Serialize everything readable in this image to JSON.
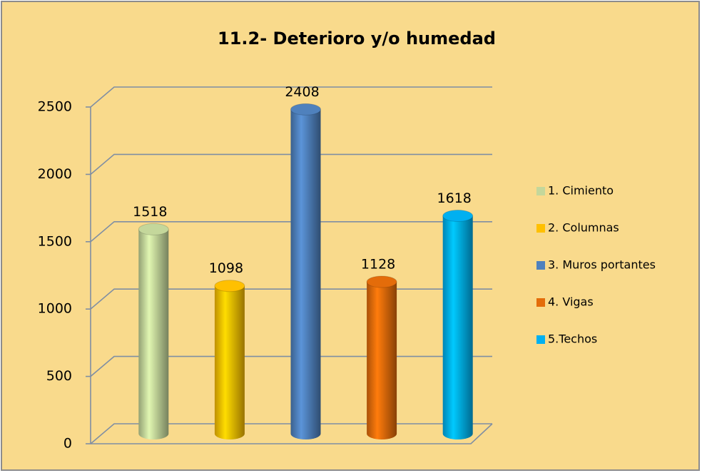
{
  "chart_data": {
    "type": "bar",
    "title": "11.2- Deterioro y/o humedad",
    "series": [
      {
        "name": "1. Cimiento",
        "color": "#c4d79b",
        "values": [
          1518
        ]
      },
      {
        "name": "2. Columnas",
        "color": "#ffc000",
        "values": [
          1098
        ]
      },
      {
        "name": "3. Muros portantes",
        "color": "#4f81bd",
        "values": [
          2408
        ]
      },
      {
        "name": "4. Vigas",
        "color": "#e46c0a",
        "values": [
          1128
        ]
      },
      {
        "name": "5.Techos",
        "color": "#00b0f0",
        "values": [
          1618
        ]
      }
    ],
    "ylim": [
      0,
      2500
    ],
    "yticks": [
      0,
      500,
      1000,
      1500,
      2000,
      2500
    ],
    "grid": true,
    "legend": "right"
  }
}
